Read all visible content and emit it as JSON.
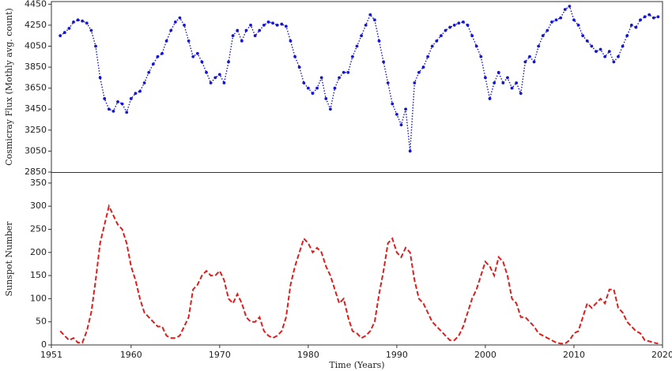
{
  "chart_data": [
    {
      "type": "line",
      "ylabel": "Cosmicray Flux (Mothly avg. count)",
      "color": "#1414d2",
      "linestyle": "dotted",
      "marker": true,
      "xlim": [
        1951,
        2020
      ],
      "ylim": [
        2850,
        4475
      ],
      "yticks": [
        2850,
        3050,
        3250,
        3450,
        3650,
        3850,
        4050,
        4250,
        4450
      ],
      "x": [
        1952,
        1952.5,
        1953,
        1953.5,
        1954,
        1954.5,
        1955,
        1955.5,
        1956,
        1956.5,
        1957,
        1957.5,
        1958,
        1958.5,
        1959,
        1959.5,
        1960,
        1960.5,
        1961,
        1961.5,
        1962,
        1962.5,
        1963,
        1963.5,
        1964,
        1964.5,
        1965,
        1965.5,
        1966,
        1966.5,
        1967,
        1967.5,
        1968,
        1968.5,
        1969,
        1969.5,
        1970,
        1970.5,
        1971,
        1971.5,
        1972,
        1972.5,
        1973,
        1973.5,
        1974,
        1974.5,
        1975,
        1975.5,
        1976,
        1976.5,
        1977,
        1977.5,
        1978,
        1978.5,
        1979,
        1979.5,
        1980,
        1980.5,
        1981,
        1981.5,
        1982,
        1982.5,
        1983,
        1983.5,
        1984,
        1984.5,
        1985,
        1985.5,
        1986,
        1986.5,
        1987,
        1987.5,
        1988,
        1988.5,
        1989,
        1989.5,
        1990,
        1990.5,
        1991,
        1991.5,
        1992,
        1992.5,
        1993,
        1993.5,
        1994,
        1994.5,
        1995,
        1995.5,
        1996,
        1996.5,
        1997,
        1997.5,
        1998,
        1998.5,
        1999,
        1999.5,
        2000,
        2000.5,
        2001,
        2001.5,
        2002,
        2002.5,
        2003,
        2003.5,
        2004,
        2004.5,
        2005,
        2005.5,
        2006,
        2006.5,
        2007,
        2007.5,
        2008,
        2008.5,
        2009,
        2009.5,
        2010,
        2010.5,
        2011,
        2011.5,
        2012,
        2012.5,
        2013,
        2013.5,
        2014,
        2014.5,
        2015,
        2015.5,
        2016,
        2016.5,
        2017,
        2017.5,
        2018,
        2018.5,
        2019,
        2019.5
      ],
      "values": [
        4150,
        4180,
        4220,
        4280,
        4300,
        4290,
        4270,
        4200,
        4050,
        3750,
        3550,
        3450,
        3430,
        3520,
        3500,
        3420,
        3550,
        3600,
        3620,
        3700,
        3800,
        3880,
        3950,
        3980,
        4100,
        4200,
        4280,
        4320,
        4250,
        4100,
        3950,
        3980,
        3900,
        3800,
        3700,
        3750,
        3780,
        3700,
        3900,
        4150,
        4200,
        4100,
        4200,
        4250,
        4150,
        4200,
        4250,
        4280,
        4270,
        4250,
        4260,
        4240,
        4100,
        3950,
        3850,
        3700,
        3650,
        3600,
        3650,
        3750,
        3550,
        3450,
        3650,
        3750,
        3800,
        3800,
        3950,
        4050,
        4150,
        4250,
        4350,
        4300,
        4100,
        3900,
        3700,
        3500,
        3400,
        3300,
        3450,
        3050,
        3700,
        3800,
        3850,
        3950,
        4050,
        4100,
        4150,
        4200,
        4230,
        4250,
        4270,
        4280,
        4250,
        4150,
        4050,
        3950,
        3750,
        3550,
        3700,
        3800,
        3700,
        3750,
        3650,
        3700,
        3600,
        3900,
        3950,
        3900,
        4050,
        4150,
        4200,
        4280,
        4300,
        4320,
        4400,
        4430,
        4300,
        4250,
        4150,
        4100,
        4050,
        4000,
        4020,
        3950,
        4000,
        3900,
        3950,
        4050,
        4150,
        4250,
        4230,
        4300,
        4330,
        4350,
        4320,
        4330
      ]
    },
    {
      "type": "line",
      "ylabel": "Sunspot Number",
      "xlabel": "Time (Years)",
      "color": "#dc1e1e",
      "linestyle": "dashed",
      "marker": false,
      "xlim": [
        1951,
        2020
      ],
      "xticks": [
        1951,
        1960,
        1970,
        1980,
        1990,
        2000,
        2010,
        2020
      ],
      "ylim": [
        0,
        372
      ],
      "yticks": [
        0,
        50,
        100,
        150,
        200,
        250,
        300,
        350
      ],
      "x": [
        1952,
        1952.5,
        1953,
        1953.5,
        1954,
        1954.5,
        1955,
        1955.5,
        1956,
        1956.5,
        1957,
        1957.5,
        1958,
        1958.5,
        1959,
        1959.5,
        1960,
        1960.5,
        1961,
        1961.5,
        1962,
        1962.5,
        1963,
        1963.5,
        1964,
        1964.5,
        1965,
        1965.5,
        1966,
        1966.5,
        1967,
        1967.5,
        1968,
        1968.5,
        1969,
        1969.5,
        1970,
        1970.5,
        1971,
        1971.5,
        1972,
        1972.5,
        1973,
        1973.5,
        1974,
        1974.5,
        1975,
        1975.5,
        1976,
        1976.5,
        1977,
        1977.5,
        1978,
        1978.5,
        1979,
        1979.5,
        1980,
        1980.5,
        1981,
        1981.5,
        1982,
        1982.5,
        1983,
        1983.5,
        1984,
        1984.5,
        1985,
        1985.5,
        1986,
        1986.5,
        1987,
        1987.5,
        1988,
        1988.5,
        1989,
        1989.5,
        1990,
        1990.5,
        1991,
        1991.5,
        1992,
        1992.5,
        1993,
        1993.5,
        1994,
        1994.5,
        1995,
        1995.5,
        1996,
        1996.5,
        1997,
        1997.5,
        1998,
        1998.5,
        1999,
        1999.5,
        2000,
        2000.5,
        2001,
        2001.5,
        2002,
        2002.5,
        2003,
        2003.5,
        2004,
        2004.5,
        2005,
        2005.5,
        2006,
        2006.5,
        2007,
        2007.5,
        2008,
        2008.5,
        2009,
        2009.5,
        2010,
        2010.5,
        2011,
        2011.5,
        2012,
        2012.5,
        2013,
        2013.5,
        2014,
        2014.5,
        2015,
        2015.5,
        2016,
        2016.5,
        2017,
        2017.5,
        2018,
        2018.5,
        2019,
        2019.5
      ],
      "values": [
        30,
        20,
        10,
        15,
        5,
        5,
        30,
        70,
        140,
        220,
        260,
        300,
        280,
        260,
        250,
        220,
        170,
        140,
        100,
        70,
        60,
        50,
        40,
        40,
        20,
        15,
        15,
        20,
        40,
        60,
        120,
        130,
        150,
        160,
        150,
        150,
        160,
        140,
        100,
        90,
        110,
        90,
        60,
        50,
        50,
        60,
        30,
        20,
        15,
        20,
        30,
        60,
        130,
        170,
        200,
        230,
        220,
        200,
        210,
        200,
        170,
        150,
        120,
        90,
        100,
        60,
        30,
        25,
        15,
        20,
        30,
        50,
        110,
        160,
        220,
        230,
        200,
        190,
        210,
        200,
        140,
        100,
        90,
        70,
        50,
        40,
        30,
        20,
        10,
        10,
        20,
        40,
        70,
        100,
        120,
        150,
        180,
        170,
        150,
        190,
        180,
        150,
        100,
        90,
        60,
        60,
        50,
        40,
        25,
        20,
        15,
        10,
        5,
        3,
        3,
        10,
        25,
        30,
        60,
        90,
        80,
        90,
        100,
        90,
        120,
        120,
        80,
        70,
        50,
        40,
        30,
        25,
        10,
        8,
        5,
        3
      ]
    }
  ]
}
